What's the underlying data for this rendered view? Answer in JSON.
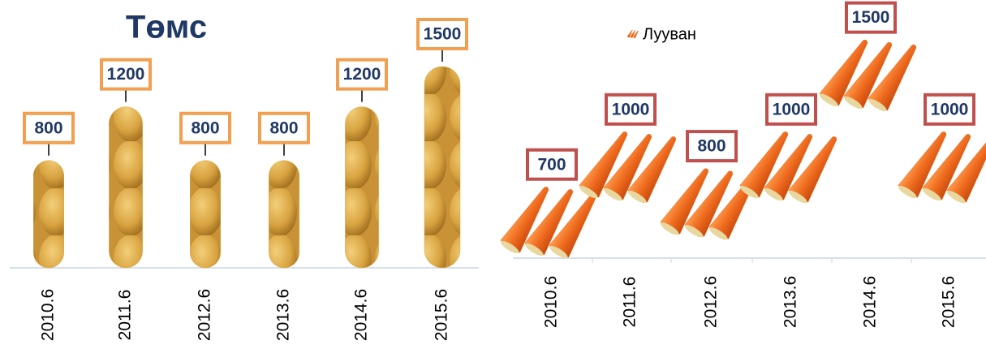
{
  "chart_data": [
    {
      "type": "bar",
      "title": "Төмс",
      "categories": [
        "2010.6",
        "2011.6",
        "2012.6",
        "2013.6",
        "2014.6",
        "2015.6"
      ],
      "values": [
        800,
        1200,
        800,
        800,
        1200,
        1500
      ],
      "color": "#d9a441",
      "ylim": [
        0,
        1500
      ]
    },
    {
      "type": "line",
      "categories": [
        "2010.6",
        "2011.6",
        "2012.6",
        "2013.6",
        "2014.6",
        "2015.6"
      ],
      "series": [
        {
          "name": "Лууван",
          "color": "#ee6a1e",
          "values": [
            700,
            1000,
            800,
            1000,
            1500,
            1000
          ]
        }
      ],
      "ylim": [
        500,
        1600
      ]
    }
  ]
}
